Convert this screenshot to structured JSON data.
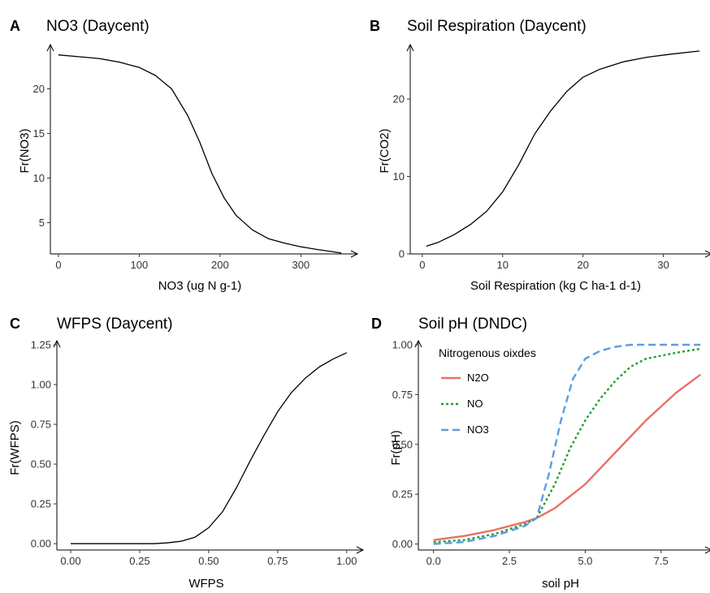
{
  "chart_data": [
    {
      "type": "line",
      "tag": "A",
      "title": "NO3 (Daycent)",
      "xlabel": "NO3 (ug N g-1)",
      "ylabel": "Fr(NO3)",
      "xlim": [
        -10,
        360
      ],
      "ylim": [
        1.5,
        24.5
      ],
      "xticks": [
        0,
        100,
        200,
        300
      ],
      "xtick_labels": [
        "0",
        "100",
        "200",
        "300"
      ],
      "yticks": [
        5,
        10,
        15,
        20
      ],
      "ytick_labels": [
        "5",
        "10",
        "15",
        "20"
      ],
      "series": [
        {
          "color": "#000000",
          "dash": "solid",
          "x": [
            0,
            25,
            50,
            75,
            100,
            120,
            140,
            160,
            175,
            190,
            205,
            220,
            240,
            260,
            280,
            300,
            320,
            350
          ],
          "y": [
            23.8,
            23.6,
            23.4,
            23.0,
            22.4,
            21.5,
            20.0,
            17.0,
            14.0,
            10.5,
            7.8,
            5.8,
            4.2,
            3.2,
            2.7,
            2.3,
            2.0,
            1.6
          ]
        }
      ]
    },
    {
      "type": "line",
      "tag": "B",
      "title": "Soil Respiration (Daycent)",
      "xlabel": "Soil Respiration (kg C ha-1 d-1)",
      "ylabel": "Fr(CO2)",
      "xlim": [
        -1.5,
        35
      ],
      "ylim": [
        0,
        26.5
      ],
      "xticks": [
        0,
        10,
        20,
        30
      ],
      "xtick_labels": [
        "0",
        "10",
        "20",
        "30"
      ],
      "yticks": [
        0,
        10,
        20
      ],
      "ytick_labels": [
        "0",
        "10",
        "20"
      ],
      "series": [
        {
          "color": "#000000",
          "dash": "solid",
          "x": [
            0.5,
            2,
            4,
            6,
            8,
            10,
            12,
            13,
            14,
            16,
            18,
            20,
            22,
            25,
            28,
            31,
            34.5
          ],
          "y": [
            1.0,
            1.5,
            2.5,
            3.8,
            5.5,
            8.0,
            11.5,
            13.5,
            15.5,
            18.5,
            21.0,
            22.8,
            23.8,
            24.8,
            25.4,
            25.8,
            26.2
          ]
        }
      ]
    },
    {
      "type": "line",
      "tag": "C",
      "title": "WFPS (Daycent)",
      "xlabel": "WFPS",
      "ylabel": "Fr(WFPS)",
      "xlim": [
        -0.05,
        1.03
      ],
      "ylim": [
        -0.04,
        1.25
      ],
      "xticks": [
        0.0,
        0.25,
        0.5,
        0.75,
        1.0
      ],
      "xtick_labels": [
        "0.00",
        "0.25",
        "0.50",
        "0.75",
        "1.00"
      ],
      "yticks": [
        0.0,
        0.25,
        0.5,
        0.75,
        1.0,
        1.25
      ],
      "ytick_labels": [
        "0.00",
        "0.25",
        "0.50",
        "0.75",
        "1.00",
        "1.25"
      ],
      "series": [
        {
          "color": "#000000",
          "dash": "solid",
          "x": [
            0.0,
            0.1,
            0.2,
            0.3,
            0.35,
            0.4,
            0.45,
            0.5,
            0.55,
            0.6,
            0.65,
            0.7,
            0.75,
            0.8,
            0.85,
            0.9,
            0.95,
            1.0
          ],
          "y": [
            0.0,
            0.0,
            0.0,
            0.0,
            0.005,
            0.015,
            0.04,
            0.1,
            0.2,
            0.35,
            0.52,
            0.68,
            0.83,
            0.95,
            1.04,
            1.11,
            1.16,
            1.2
          ]
        }
      ]
    },
    {
      "type": "line",
      "tag": "D",
      "title": "Soil pH (DNDC)",
      "xlabel": "soil pH",
      "ylabel": "Fr(pH)",
      "xlim": [
        -0.5,
        8.9
      ],
      "ylim": [
        -0.03,
        1.0
      ],
      "xticks": [
        0.0,
        2.5,
        5.0,
        7.5
      ],
      "xtick_labels": [
        "0.0",
        "2.5",
        "5.0",
        "7.5"
      ],
      "yticks": [
        0.0,
        0.25,
        0.5,
        0.75,
        1.0
      ],
      "ytick_labels": [
        "0.00",
        "0.25",
        "0.50",
        "0.75",
        "1.00"
      ],
      "legend": {
        "title": "Nitrogenous oixdes",
        "position": "top-left"
      },
      "series": [
        {
          "name": "N2O",
          "color": "#E8706A",
          "dash": "solid",
          "x": [
            0,
            1,
            2,
            3,
            3.4,
            4,
            5,
            6,
            7,
            8,
            8.8
          ],
          "y": [
            0.02,
            0.04,
            0.07,
            0.11,
            0.13,
            0.18,
            0.3,
            0.46,
            0.62,
            0.76,
            0.85
          ]
        },
        {
          "name": "NO",
          "color": "#22A035",
          "dash": "dotted",
          "x": [
            0,
            1,
            2,
            3,
            3.4,
            4,
            4.5,
            5,
            5.5,
            6,
            6.5,
            7,
            8,
            8.8
          ],
          "y": [
            0.01,
            0.02,
            0.05,
            0.1,
            0.13,
            0.3,
            0.48,
            0.62,
            0.73,
            0.82,
            0.89,
            0.93,
            0.96,
            0.98
          ]
        },
        {
          "name": "NO3",
          "color": "#5E9CE0",
          "dash": "dashed",
          "x": [
            0,
            1,
            2,
            3,
            3.4,
            3.8,
            4.2,
            4.6,
            5,
            5.5,
            6,
            6.5,
            7,
            8,
            8.8
          ],
          "y": [
            0.0,
            0.01,
            0.04,
            0.09,
            0.13,
            0.35,
            0.62,
            0.83,
            0.93,
            0.97,
            0.99,
            1.0,
            1.0,
            1.0,
            1.0
          ]
        }
      ]
    }
  ]
}
